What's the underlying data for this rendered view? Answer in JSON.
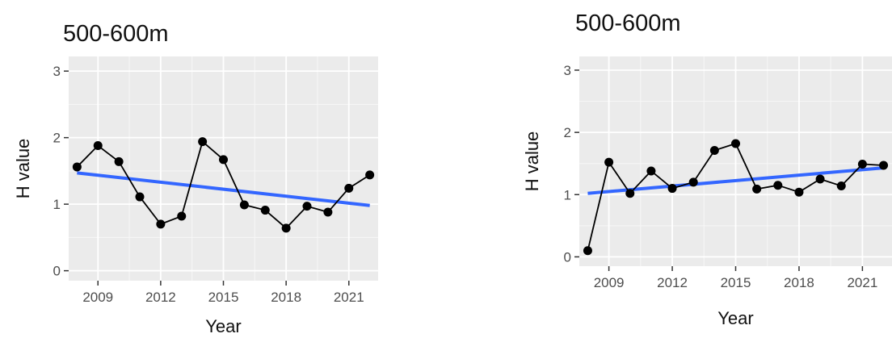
{
  "chart_data": [
    {
      "type": "line",
      "title": "500-600m",
      "xlabel": "Year",
      "ylabel": "H value",
      "xlim": [
        2007.6,
        2022.4
      ],
      "ylim": [
        0,
        3
      ],
      "xticks": [
        2009,
        2012,
        2015,
        2018,
        2021
      ],
      "yticks": [
        0,
        1,
        2,
        3
      ],
      "grid": true,
      "points": {
        "x": [
          2008,
          2009,
          2010,
          2011,
          2012,
          2013,
          2014,
          2015,
          2016,
          2017,
          2018,
          2019,
          2020,
          2021,
          2022
        ],
        "y": [
          1.56,
          1.88,
          1.64,
          1.11,
          0.7,
          0.82,
          1.94,
          1.67,
          0.99,
          0.91,
          0.64,
          0.97,
          0.88,
          1.24,
          1.44
        ]
      },
      "trend": {
        "x": [
          2008,
          2022
        ],
        "y": [
          1.47,
          0.98
        ],
        "color": "#3366ff"
      }
    },
    {
      "type": "line",
      "title": "500-600m",
      "xlabel": "Year",
      "ylabel": "H value",
      "xlim": [
        2007.6,
        2022.4
      ],
      "ylim": [
        0,
        3
      ],
      "xticks": [
        2009,
        2012,
        2015,
        2018,
        2021
      ],
      "yticks": [
        0,
        1,
        2,
        3
      ],
      "grid": true,
      "points": {
        "x": [
          2008,
          2009,
          2010,
          2011,
          2012,
          2013,
          2014,
          2015,
          2016,
          2017,
          2018,
          2019,
          2020,
          2021,
          2022
        ],
        "y": [
          0.1,
          1.52,
          1.02,
          1.38,
          1.1,
          1.2,
          1.71,
          1.82,
          1.09,
          1.15,
          1.04,
          1.25,
          1.14,
          1.49,
          1.47
        ]
      },
      "trend": {
        "x": [
          2008,
          2022
        ],
        "y": [
          1.02,
          1.43
        ],
        "color": "#3366ff"
      }
    }
  ]
}
